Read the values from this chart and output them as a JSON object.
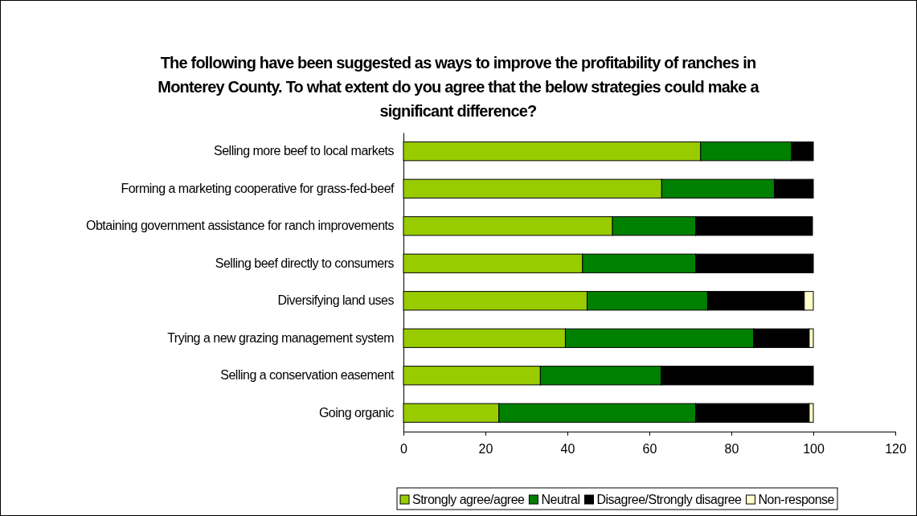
{
  "chart_data": {
    "type": "bar",
    "orientation": "horizontal",
    "stacked": true,
    "title": "The following have been suggested as ways to improve the profitability of ranches in Monterey County. To what extent do you agree that the below strategies could make a significant difference?",
    "categories": [
      "Selling more beef to local markets",
      "Forming a marketing cooperative for grass-fed-beef",
      "Obtaining government assistance for ranch improvements",
      "Selling beef directly to consumers",
      "Diversifying land uses",
      "Trying a new grazing management system",
      "Selling a conservation easement",
      "Going organic"
    ],
    "series": [
      {
        "name": "Strongly agree/agree",
        "color": "#99cc00",
        "values": [
          72.5,
          63,
          51,
          43.7,
          44.8,
          39.5,
          33.4,
          23.3
        ]
      },
      {
        "name": "Neutral",
        "color": "#008000",
        "values": [
          22.2,
          27.5,
          20.3,
          27.6,
          29.4,
          45.9,
          29.5,
          48
        ]
      },
      {
        "name": "Disagree/Strongly disagree",
        "color": "#000000",
        "values": [
          5.3,
          9.5,
          28.5,
          28.7,
          23.6,
          13.6,
          37.1,
          27.7
        ]
      },
      {
        "name": "Non-response",
        "color": "#ffffcc",
        "values": [
          0,
          0,
          0,
          0,
          2.2,
          1,
          0,
          1
        ]
      }
    ],
    "xlim": [
      0,
      120
    ],
    "xticks": [
      0,
      20,
      40,
      60,
      80,
      100,
      120
    ],
    "grid": false,
    "legend": "bottom"
  }
}
